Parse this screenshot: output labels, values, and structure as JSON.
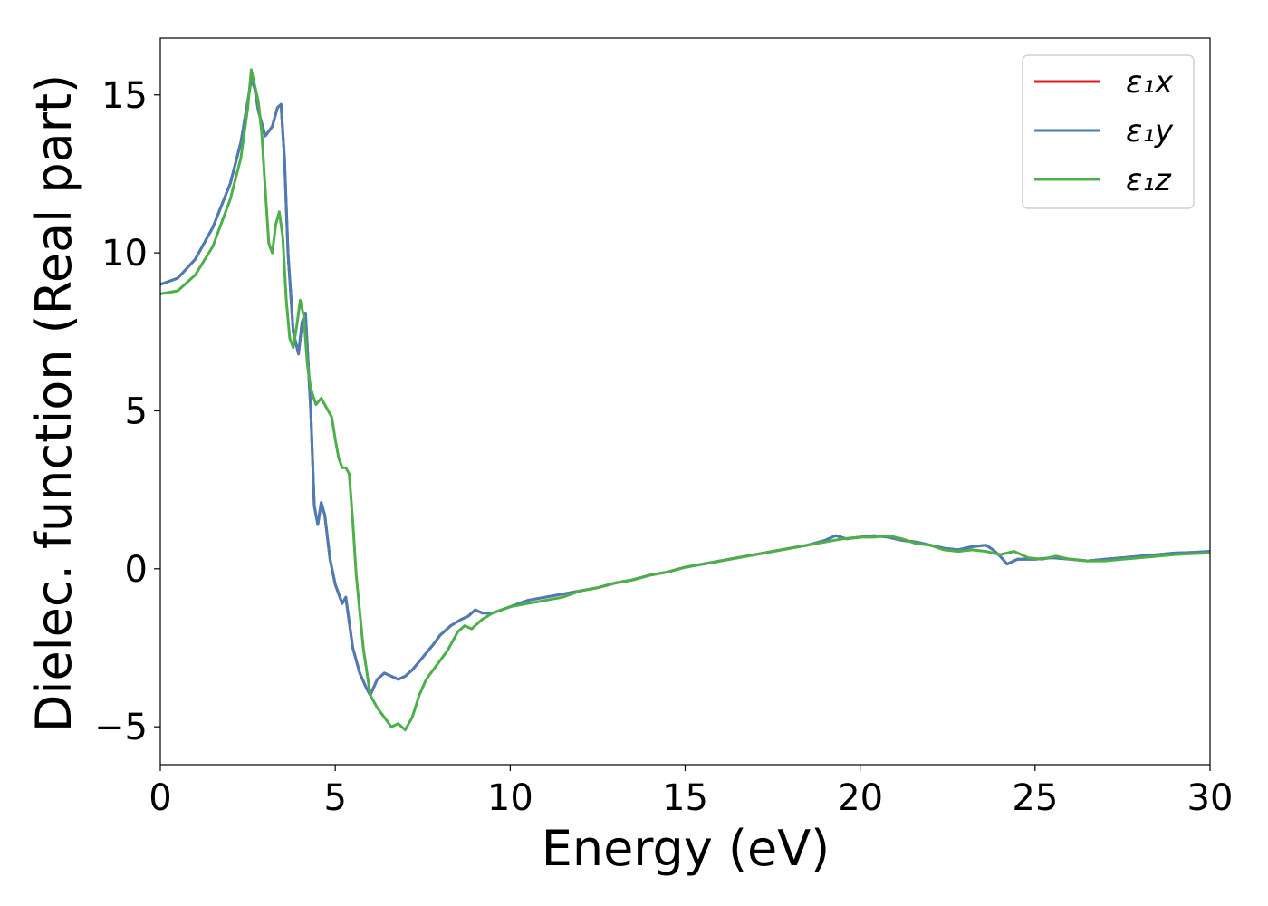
{
  "chart_data": {
    "type": "line",
    "title": "",
    "xlabel": "Energy (eV)",
    "ylabel": "Dielec. function (Real part)",
    "xlim": [
      0,
      30
    ],
    "ylim": [
      -6.2,
      16.8
    ],
    "xticks": [
      0,
      5,
      10,
      15,
      20,
      25,
      30
    ],
    "yticks": [
      -5,
      0,
      5,
      10,
      15
    ],
    "xtick_labels": [
      "0",
      "5",
      "10",
      "15",
      "20",
      "25",
      "30"
    ],
    "ytick_labels": [
      "−5",
      "0",
      "5",
      "10",
      "15"
    ],
    "grid": false,
    "legend_position": "top-right",
    "series": [
      {
        "name": "ε₁x",
        "color": "#e41a1c",
        "x": [
          0,
          0.5,
          1.0,
          1.5,
          2.0,
          2.3,
          2.5,
          2.6,
          2.7,
          2.8,
          3.0,
          3.2,
          3.35,
          3.45,
          3.55,
          3.65,
          3.8,
          3.95,
          4.05,
          4.15,
          4.3,
          4.4,
          4.5,
          4.6,
          4.7,
          4.85,
          5.0,
          5.2,
          5.3,
          5.5,
          5.7,
          5.9,
          6.0,
          6.2,
          6.4,
          6.6,
          6.8,
          7.0,
          7.2,
          7.5,
          7.8,
          8.0,
          8.3,
          8.6,
          8.8,
          9.0,
          9.2,
          9.5,
          10.0,
          10.5,
          11.0,
          11.5,
          12.0,
          12.5,
          13.0,
          13.5,
          14.0,
          14.5,
          15.0,
          15.5,
          16.0,
          16.5,
          17.0,
          17.5,
          18.0,
          18.5,
          19.0,
          19.3,
          19.6,
          20.0,
          20.4,
          20.8,
          21.2,
          21.6,
          22.0,
          22.4,
          22.8,
          23.2,
          23.6,
          23.8,
          24.0,
          24.2,
          24.5,
          25.0,
          25.5,
          26.0,
          26.5,
          27.0,
          27.5,
          28.0,
          28.5,
          29.0,
          29.5,
          30.0
        ],
        "y": [
          9.0,
          9.2,
          9.8,
          10.8,
          12.2,
          13.5,
          14.8,
          15.5,
          15.2,
          14.5,
          13.7,
          14.0,
          14.6,
          14.7,
          13.0,
          10.0,
          7.5,
          6.8,
          7.8,
          8.1,
          5.0,
          2.0,
          1.4,
          2.1,
          1.7,
          0.3,
          -0.5,
          -1.1,
          -0.9,
          -2.5,
          -3.3,
          -3.8,
          -4.0,
          -3.5,
          -3.3,
          -3.4,
          -3.5,
          -3.4,
          -3.2,
          -2.8,
          -2.4,
          -2.1,
          -1.8,
          -1.6,
          -1.5,
          -1.3,
          -1.4,
          -1.4,
          -1.2,
          -1.0,
          -0.9,
          -0.8,
          -0.7,
          -0.6,
          -0.45,
          -0.35,
          -0.2,
          -0.1,
          0.05,
          0.15,
          0.25,
          0.35,
          0.45,
          0.55,
          0.65,
          0.75,
          0.9,
          1.05,
          0.95,
          1.0,
          1.05,
          1.0,
          0.9,
          0.85,
          0.75,
          0.65,
          0.6,
          0.7,
          0.75,
          0.6,
          0.4,
          0.15,
          0.3,
          0.3,
          0.35,
          0.3,
          0.25,
          0.3,
          0.35,
          0.4,
          0.45,
          0.5,
          0.52,
          0.55
        ]
      },
      {
        "name": "ε₁y",
        "color": "#4a7db5",
        "x": [
          0,
          0.5,
          1.0,
          1.5,
          2.0,
          2.3,
          2.5,
          2.6,
          2.7,
          2.8,
          3.0,
          3.2,
          3.35,
          3.45,
          3.55,
          3.65,
          3.8,
          3.95,
          4.05,
          4.15,
          4.3,
          4.4,
          4.5,
          4.6,
          4.7,
          4.85,
          5.0,
          5.2,
          5.3,
          5.5,
          5.7,
          5.9,
          6.0,
          6.2,
          6.4,
          6.6,
          6.8,
          7.0,
          7.2,
          7.5,
          7.8,
          8.0,
          8.3,
          8.6,
          8.8,
          9.0,
          9.2,
          9.5,
          10.0,
          10.5,
          11.0,
          11.5,
          12.0,
          12.5,
          13.0,
          13.5,
          14.0,
          14.5,
          15.0,
          15.5,
          16.0,
          16.5,
          17.0,
          17.5,
          18.0,
          18.5,
          19.0,
          19.3,
          19.6,
          20.0,
          20.4,
          20.8,
          21.2,
          21.6,
          22.0,
          22.4,
          22.8,
          23.2,
          23.6,
          23.8,
          24.0,
          24.2,
          24.5,
          25.0,
          25.5,
          26.0,
          26.5,
          27.0,
          27.5,
          28.0,
          28.5,
          29.0,
          29.5,
          30.0
        ],
        "y": [
          9.0,
          9.2,
          9.8,
          10.8,
          12.2,
          13.5,
          14.8,
          15.5,
          15.2,
          14.5,
          13.7,
          14.0,
          14.6,
          14.7,
          13.0,
          10.0,
          7.5,
          6.8,
          7.8,
          8.1,
          5.0,
          2.0,
          1.4,
          2.1,
          1.7,
          0.3,
          -0.5,
          -1.1,
          -0.9,
          -2.5,
          -3.3,
          -3.8,
          -4.0,
          -3.5,
          -3.3,
          -3.4,
          -3.5,
          -3.4,
          -3.2,
          -2.8,
          -2.4,
          -2.1,
          -1.8,
          -1.6,
          -1.5,
          -1.3,
          -1.4,
          -1.4,
          -1.2,
          -1.0,
          -0.9,
          -0.8,
          -0.7,
          -0.6,
          -0.45,
          -0.35,
          -0.2,
          -0.1,
          0.05,
          0.15,
          0.25,
          0.35,
          0.45,
          0.55,
          0.65,
          0.75,
          0.9,
          1.05,
          0.95,
          1.0,
          1.05,
          1.0,
          0.9,
          0.85,
          0.75,
          0.65,
          0.6,
          0.7,
          0.75,
          0.6,
          0.4,
          0.15,
          0.3,
          0.3,
          0.35,
          0.3,
          0.25,
          0.3,
          0.35,
          0.4,
          0.45,
          0.5,
          0.52,
          0.55
        ]
      },
      {
        "name": "ε₁z",
        "color": "#4daf4a",
        "x": [
          0,
          0.5,
          1.0,
          1.5,
          2.0,
          2.3,
          2.5,
          2.6,
          2.7,
          2.8,
          2.9,
          3.0,
          3.1,
          3.2,
          3.3,
          3.4,
          3.5,
          3.6,
          3.7,
          3.8,
          3.9,
          4.0,
          4.1,
          4.2,
          4.3,
          4.45,
          4.6,
          4.75,
          4.9,
          5.0,
          5.1,
          5.2,
          5.3,
          5.4,
          5.5,
          5.6,
          5.8,
          6.0,
          6.2,
          6.4,
          6.6,
          6.8,
          7.0,
          7.2,
          7.4,
          7.6,
          7.8,
          8.0,
          8.2,
          8.5,
          8.7,
          8.9,
          9.2,
          9.5,
          10.0,
          10.5,
          11.0,
          11.5,
          12.0,
          12.5,
          13.0,
          13.5,
          14.0,
          14.5,
          15.0,
          15.5,
          16.0,
          16.5,
          17.0,
          17.5,
          18.0,
          18.5,
          19.0,
          19.5,
          20.0,
          20.4,
          20.8,
          21.2,
          21.6,
          22.0,
          22.4,
          22.8,
          23.2,
          23.6,
          24.0,
          24.4,
          24.8,
          25.2,
          25.6,
          26.0,
          26.5,
          27.0,
          27.5,
          28.0,
          28.5,
          29.0,
          29.5,
          30.0
        ],
        "y": [
          8.7,
          8.8,
          9.3,
          10.2,
          11.7,
          13.0,
          14.6,
          15.8,
          15.3,
          14.8,
          13.8,
          12.0,
          10.3,
          10.0,
          10.9,
          11.3,
          10.5,
          8.5,
          7.3,
          7.0,
          7.7,
          8.5,
          8.0,
          6.5,
          5.7,
          5.2,
          5.4,
          5.1,
          4.8,
          4.1,
          3.5,
          3.2,
          3.2,
          3.0,
          1.5,
          -0.2,
          -2.5,
          -4.0,
          -4.4,
          -4.7,
          -5.0,
          -4.9,
          -5.1,
          -4.7,
          -4.0,
          -3.5,
          -3.2,
          -2.9,
          -2.6,
          -2.0,
          -1.8,
          -1.9,
          -1.6,
          -1.4,
          -1.2,
          -1.1,
          -1.0,
          -0.9,
          -0.7,
          -0.6,
          -0.45,
          -0.35,
          -0.2,
          -0.1,
          0.05,
          0.15,
          0.25,
          0.35,
          0.45,
          0.55,
          0.65,
          0.75,
          0.85,
          0.95,
          1.0,
          1.0,
          1.05,
          0.95,
          0.8,
          0.75,
          0.6,
          0.55,
          0.6,
          0.55,
          0.45,
          0.55,
          0.35,
          0.3,
          0.4,
          0.3,
          0.25,
          0.25,
          0.3,
          0.35,
          0.4,
          0.45,
          0.48,
          0.5
        ]
      }
    ]
  }
}
